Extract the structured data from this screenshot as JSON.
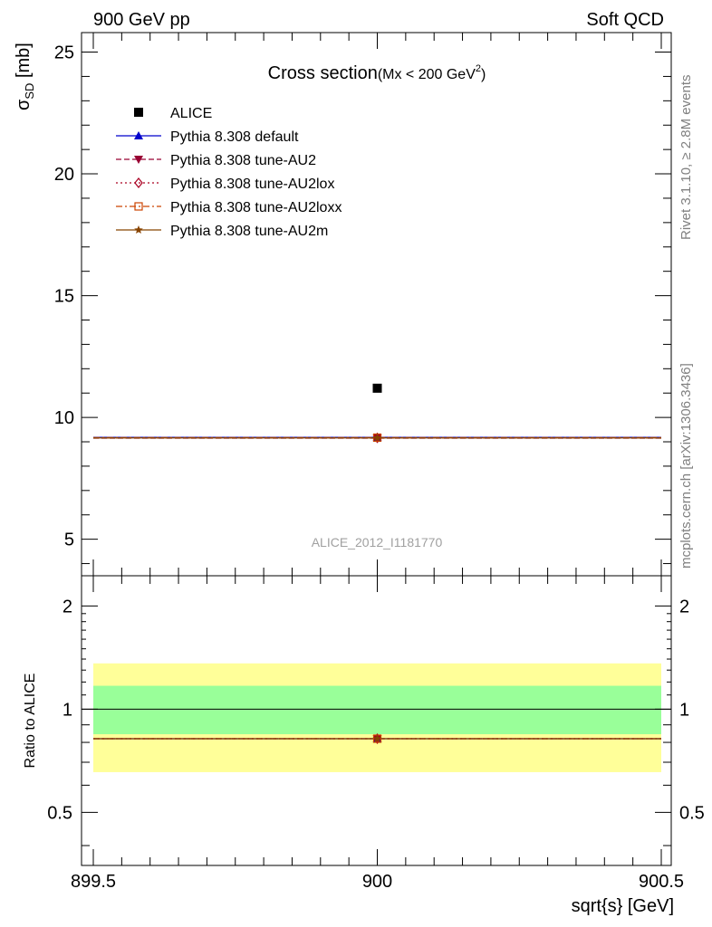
{
  "header": {
    "left": "900 GeV pp",
    "right": "Soft QCD"
  },
  "side_text": {
    "rivet": "Rivet 3.1.10, ≥ 2.8M events",
    "source": "mcplots.cern.ch [arXiv:1306.3436]"
  },
  "colors": {
    "alice": "#000000",
    "default": "#0000cc",
    "au2": "#990033",
    "au2lox": "#aa0022",
    "au2loxx": "#cc4400",
    "au2m": "#884400",
    "band_inner": "#99ff99",
    "band_outer": "#ffff99"
  },
  "chart_data": [
    {
      "type": "scatter",
      "title": "Cross section",
      "title_sub": "(Mx < 200 GeV",
      "title_sup": "2",
      "title_close": ")",
      "ylabel": "σ",
      "ylabel_sub": "SD",
      "ylabel_unit": " [mb]",
      "xlim": [
        899.5,
        900.5
      ],
      "ylim": [
        3.5,
        25.8
      ],
      "yticks": [
        5,
        10,
        15,
        20,
        25
      ],
      "yticklabels": [
        "5",
        "10",
        "15",
        "20",
        "25"
      ],
      "watermark": "ALICE_2012_I1181770",
      "legend_placement": "top-left",
      "series": [
        {
          "name": "ALICE",
          "key": "alice",
          "x": [
            900
          ],
          "y": [
            11.2
          ],
          "marker": "square",
          "line": "none"
        },
        {
          "name": "Pythia 8.308 default",
          "key": "default",
          "x": [
            899.5,
            900.5
          ],
          "y": [
            9.18,
            9.18
          ],
          "marker": "triangle-up",
          "line": "solid"
        },
        {
          "name": "Pythia 8.308 tune-AU2",
          "key": "au2",
          "x": [
            899.5,
            900.5
          ],
          "y": [
            9.15,
            9.15
          ],
          "marker": "triangle-down",
          "line": "dashed"
        },
        {
          "name": "Pythia 8.308 tune-AU2lox",
          "key": "au2lox",
          "x": [
            899.5,
            900.5
          ],
          "y": [
            9.16,
            9.16
          ],
          "marker": "diamond-open",
          "line": "dotted"
        },
        {
          "name": "Pythia 8.308 tune-AU2loxx",
          "key": "au2loxx",
          "x": [
            899.5,
            900.5
          ],
          "y": [
            9.17,
            9.17
          ],
          "marker": "square-open",
          "line": "dashdot"
        },
        {
          "name": "Pythia 8.308 tune-AU2m",
          "key": "au2m",
          "x": [
            899.5,
            900.5
          ],
          "y": [
            9.16,
            9.16
          ],
          "marker": "star",
          "line": "solid"
        }
      ]
    },
    {
      "type": "scatter",
      "ylabel": "Ratio to ALICE",
      "xlabel": "sqrt{s} [GeV]",
      "xlim": [
        899.5,
        900.5
      ],
      "ylim": [
        0.35,
        2.45
      ],
      "log_y": true,
      "xticks": [
        899.5,
        900,
        900.5
      ],
      "xticklabels": [
        "899.5",
        "900",
        "900.5"
      ],
      "yticks": [
        0.5,
        1,
        2
      ],
      "yticklabels": [
        "0.5",
        "1",
        "2"
      ],
      "band_inner": [
        0.845,
        1.17
      ],
      "band_outer": [
        0.655,
        1.36
      ],
      "reference": 1.0,
      "ratio": 0.82
    }
  ]
}
